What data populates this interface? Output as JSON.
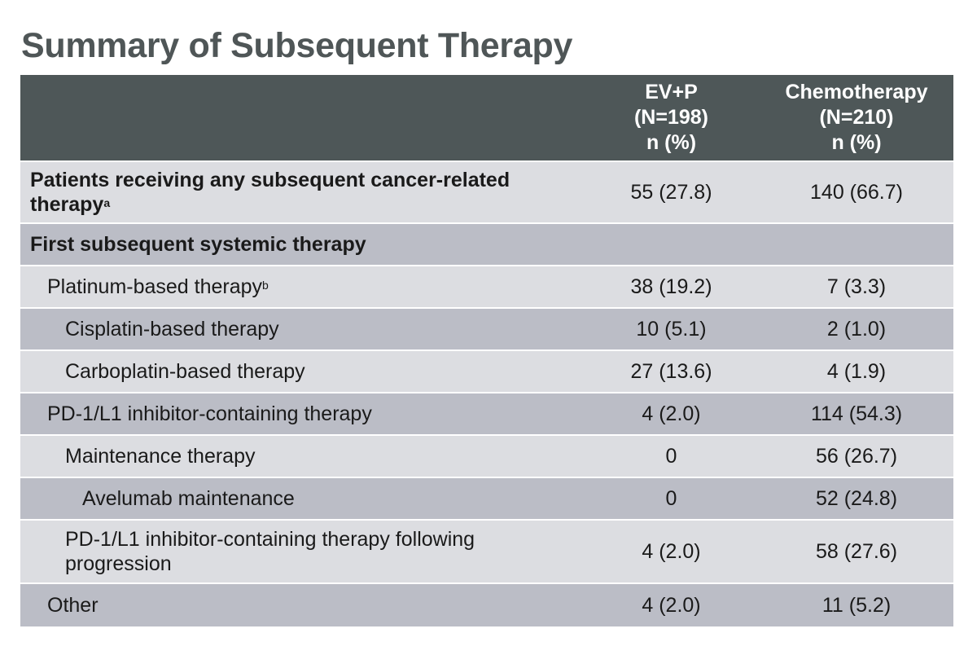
{
  "title": "Summary of Subsequent Therapy",
  "table": {
    "header": {
      "label": "",
      "col1": [
        "EV+P",
        "(N=198)",
        "n (%)"
      ],
      "col2": [
        "Chemotherapy",
        "(N=210)",
        "n (%)"
      ]
    },
    "rows": [
      {
        "label": "Patients receiving any subsequent cancer-related therapy",
        "sup": "a",
        "v1": "55 (27.8)",
        "v2": "140 (66.7)"
      },
      {
        "label": "First subsequent systemic therapy",
        "sup": "",
        "v1": "",
        "v2": ""
      },
      {
        "label": "Platinum-based therapy",
        "sup": "b",
        "v1": "38 (19.2)",
        "v2": "7 (3.3)"
      },
      {
        "label": "Cisplatin-based therapy",
        "sup": "",
        "v1": "10 (5.1)",
        "v2": "2 (1.0)"
      },
      {
        "label": "Carboplatin-based therapy",
        "sup": "",
        "v1": "27 (13.6)",
        "v2": "4 (1.9)"
      },
      {
        "label": "PD-1/L1 inhibitor-containing therapy",
        "sup": "",
        "v1": "4 (2.0)",
        "v2": "114 (54.3)"
      },
      {
        "label": "Maintenance therapy",
        "sup": "",
        "v1": "0",
        "v2": "56 (26.7)"
      },
      {
        "label": "Avelumab maintenance",
        "sup": "",
        "v1": "0",
        "v2": "52 (24.8)"
      },
      {
        "label": "PD-1/L1 inhibitor-containing therapy following progression",
        "sup": "",
        "v1": "4 (2.0)",
        "v2": "58 (27.6)"
      },
      {
        "label": "Other",
        "sup": "",
        "v1": "4 (2.0)",
        "v2": "11 (5.2)"
      }
    ]
  },
  "colors": {
    "header_bg": "#4e5758",
    "row_light": "#dcdde1",
    "row_dark": "#bbbdc6",
    "title": "#4f5657"
  }
}
